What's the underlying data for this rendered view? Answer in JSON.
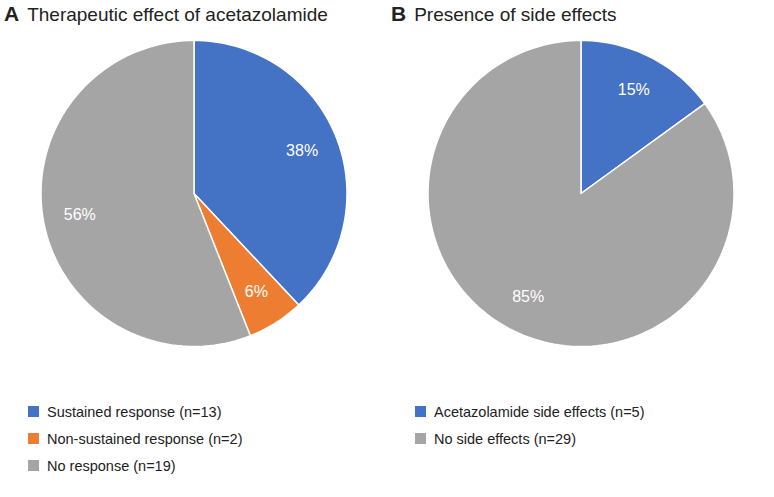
{
  "chart_data": [
    {
      "type": "pie",
      "panel_label": "A",
      "title": "Therapeutic effect of acetazolamide",
      "categories": [
        "Sustained response (n=13)",
        "Non-sustained response (n=2)",
        "No response (n=19)"
      ],
      "values": [
        38,
        6,
        56
      ],
      "value_labels": [
        "38%",
        "6%",
        "56%"
      ],
      "colors": [
        "#4472c4",
        "#ed7d31",
        "#a5a5a5"
      ],
      "data_labels": true,
      "legend": "bottom"
    },
    {
      "type": "pie",
      "panel_label": "B",
      "title": "Presence of side effects",
      "categories": [
        "Acetazolamide side effects (n=5)",
        "No side effects (n=29)"
      ],
      "values": [
        15,
        85
      ],
      "value_labels": [
        "15%",
        "85%"
      ],
      "colors": [
        "#4472c4",
        "#a5a5a5"
      ],
      "data_labels": true,
      "legend": "bottom"
    }
  ]
}
